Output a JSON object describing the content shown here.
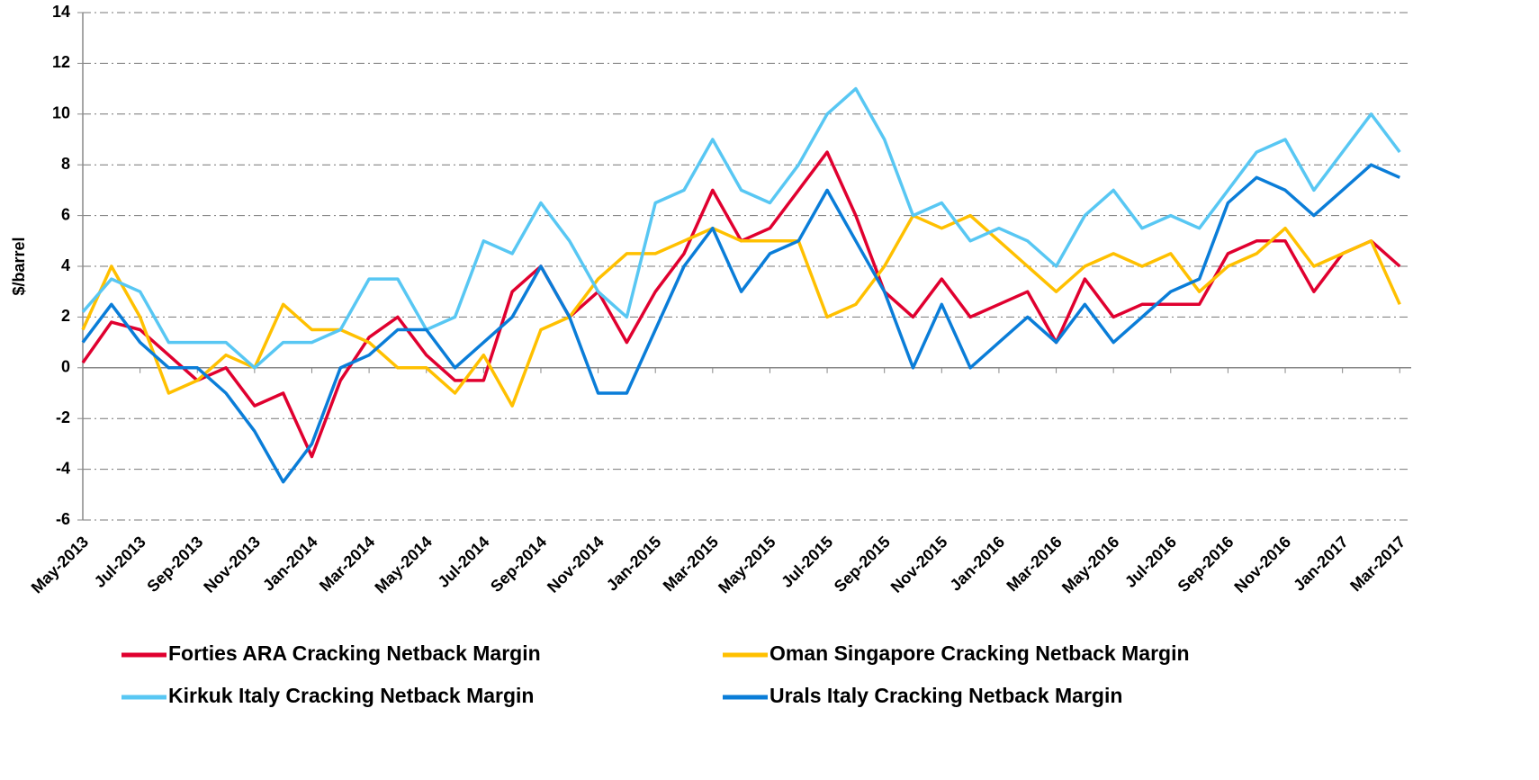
{
  "chart_data": {
    "type": "line",
    "y_label": "$/barrel",
    "categories": [
      "May-2013",
      null,
      "Jul-2013",
      null,
      "Sep-2013",
      null,
      "Nov-2013",
      null,
      "Jan-2014",
      null,
      "Mar-2014",
      null,
      "May-2014",
      null,
      "Jul-2014",
      null,
      "Sep-2014",
      null,
      "Nov-2014",
      null,
      "Jan-2015",
      null,
      "Mar-2015",
      null,
      "May-2015",
      null,
      "Jul-2015",
      null,
      "Sep-2015",
      null,
      "Nov-2015",
      null,
      "Jan-2016",
      null,
      "Mar-2016",
      null,
      "May-2016",
      null,
      "Jul-2016",
      null,
      "Sep-2016",
      null,
      "Nov-2016",
      null,
      "Jan-2017",
      null,
      "Mar-2017"
    ],
    "series": [
      {
        "name": "Forties ARA Cracking Netback Margin",
        "color": "#e0002f",
        "values": [
          0.2,
          1.8,
          1.5,
          0.5,
          -0.5,
          0,
          -1.5,
          -1,
          -3.5,
          -0.5,
          1.2,
          2,
          0.5,
          -0.5,
          -0.5,
          3,
          4,
          2,
          3,
          1,
          3,
          4.5,
          7,
          5,
          5.5,
          7,
          8.5,
          6,
          3,
          2,
          3.5,
          2,
          2.5,
          3,
          1,
          3.5,
          2,
          2.5,
          2.5,
          2.5,
          4.5,
          5,
          5,
          3,
          4.5,
          5,
          4
        ]
      },
      {
        "name": "Oman Singapore Cracking Netback Margin",
        "color": "#ffc000",
        "values": [
          1.5,
          4,
          2,
          -1,
          -0.5,
          0.5,
          0,
          2.5,
          1.5,
          1.5,
          1,
          0,
          0,
          -1,
          0.5,
          -1.5,
          1.5,
          2,
          3.5,
          4.5,
          4.5,
          5,
          5.5,
          5,
          5,
          5,
          2,
          2.5,
          4,
          6,
          5.5,
          6,
          5,
          4,
          3,
          4,
          4.5,
          4,
          4.5,
          3,
          4,
          4.5,
          5.5,
          4,
          4.5,
          5,
          2.5
        ]
      },
      {
        "name": "Kirkuk Italy Cracking Netback Margin",
        "color": "#58c7f3",
        "values": [
          2.2,
          3.5,
          3,
          1,
          1,
          1,
          0,
          1,
          1,
          1.5,
          3.5,
          3.5,
          1.5,
          2,
          5,
          4.5,
          6.5,
          5,
          3,
          2,
          6.5,
          7,
          9,
          7,
          6.5,
          8,
          10,
          11,
          9,
          6,
          6.5,
          5,
          5.5,
          5,
          4,
          6,
          7,
          5.5,
          6,
          5.5,
          7,
          8.5,
          9,
          7,
          8.5,
          10,
          8.5
        ]
      },
      {
        "name": "Urals Italy Cracking Netback Margin",
        "color": "#0a7dd8",
        "values": [
          1,
          2.5,
          1,
          0,
          0,
          -1,
          -2.5,
          -4.5,
          -3,
          0,
          0.5,
          1.5,
          1.5,
          0,
          1,
          2,
          4,
          2,
          -1,
          -1,
          1.5,
          4,
          5.5,
          3,
          4.5,
          5,
          7,
          5,
          3,
          0,
          2.5,
          0,
          1,
          2,
          1,
          2.5,
          1,
          2,
          3,
          3.5,
          6.5,
          7.5,
          7,
          6,
          7,
          8,
          7.5
        ]
      }
    ],
    "ylim": [
      -6,
      14
    ],
    "yticks": [
      -6,
      -4,
      -2,
      0,
      2,
      4,
      6,
      8,
      10,
      12,
      14
    ],
    "grid": true,
    "legend": "bottom"
  }
}
